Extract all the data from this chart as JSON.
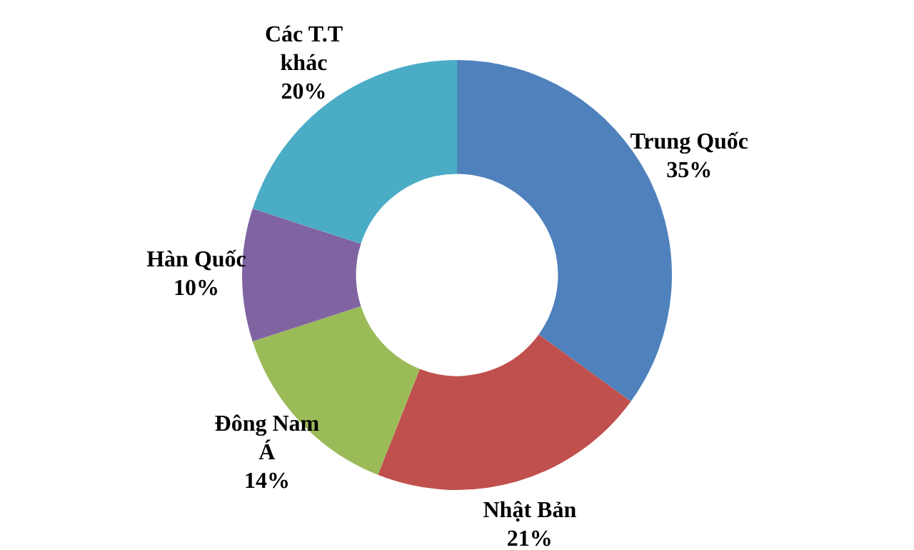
{
  "chart_data": {
    "type": "donut",
    "categories": [
      "Trung Quốc",
      "Nhật Bản",
      "Đông Nam Á",
      "Hàn Quốc",
      "Các T.T khác"
    ],
    "values": [
      35,
      21,
      14,
      10,
      20
    ],
    "colors": [
      "#4f81bd",
      "#c0504d",
      "#9bbb59",
      "#8064a2",
      "#4bacc6"
    ],
    "value_labels": [
      "35%",
      "21%",
      "14%",
      "10%",
      "20%"
    ],
    "legend": false
  }
}
